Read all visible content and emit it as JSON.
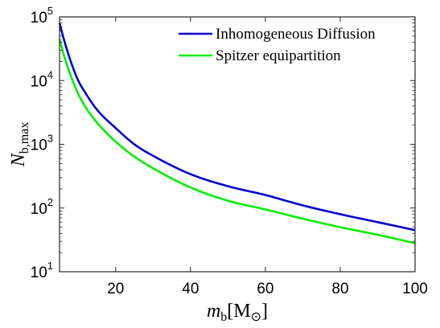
{
  "chart_data": {
    "type": "line",
    "title": "",
    "xlabel": "m_b[M_⊙]",
    "xlabel_parts": {
      "main": "m",
      "sub": "b",
      "unit": "[M",
      "unit_sub": "⊙",
      "close": "]"
    },
    "ylabel": "N_b,max",
    "ylabel_parts": {
      "main": "N",
      "sub": "b,max"
    },
    "xlim": [
      5,
      100
    ],
    "ylim": [
      10,
      100000
    ],
    "yscale": "log",
    "grid": false,
    "legend_position": "top-right",
    "x_ticks": [
      20,
      40,
      60,
      80,
      100
    ],
    "x_tick_labels": [
      "20",
      "40",
      "60",
      "80",
      "100"
    ],
    "y_ticks": [
      10,
      100,
      1000,
      10000,
      100000
    ],
    "y_tick_labels": [
      {
        "base": "10",
        "exp": "1"
      },
      {
        "base": "10",
        "exp": "2"
      },
      {
        "base": "10",
        "exp": "3"
      },
      {
        "base": "10",
        "exp": "4"
      },
      {
        "base": "10",
        "exp": "5"
      }
    ],
    "x": [
      5,
      6,
      8,
      10,
      12,
      15,
      20,
      25,
      30,
      40,
      50,
      60,
      70,
      80,
      90,
      100
    ],
    "series": [
      {
        "name": "Inhomogeneous Diffusion",
        "color": "#0000cc",
        "values": [
          80000,
          48000,
          20000,
          10000,
          6300,
          3500,
          1800,
          1000,
          660,
          340,
          220,
          160,
          110,
          80,
          60,
          45
        ]
      },
      {
        "name": "Spitzer equipartition",
        "color": "#00ee00",
        "values": [
          45000,
          27000,
          12000,
          6200,
          3800,
          2200,
          1100,
          640,
          420,
          210,
          130,
          95,
          68,
          50,
          38,
          28
        ]
      }
    ]
  }
}
